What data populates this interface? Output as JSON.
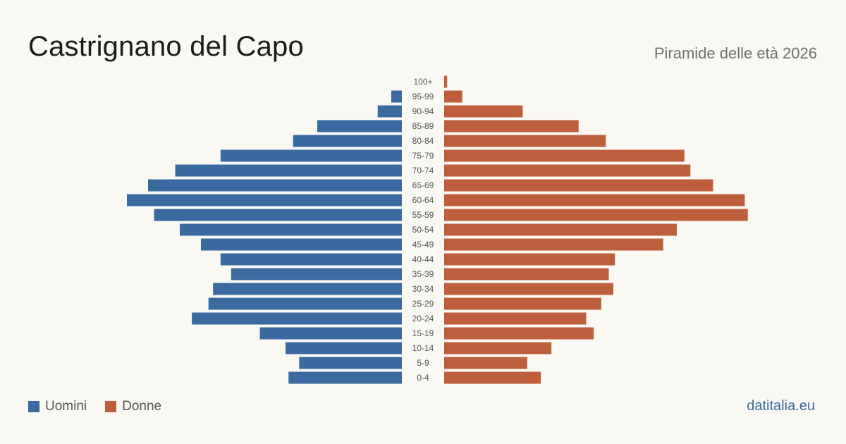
{
  "header": {
    "title": "Castrignano del Capo",
    "subtitle": "Piramide delle età 2026"
  },
  "legend": {
    "men_label": "Uomini",
    "women_label": "Donne"
  },
  "brand": "datitalia.eu",
  "colors": {
    "men": "#3b6aa0",
    "women": "#bd5e3c",
    "background": "#faf8f3"
  },
  "chart_data": {
    "type": "bar",
    "orientation": "horizontal-pyramid",
    "categories": [
      "100+",
      "95-99",
      "90-94",
      "85-89",
      "80-84",
      "75-79",
      "70-74",
      "65-69",
      "60-64",
      "55-59",
      "50-54",
      "45-49",
      "40-44",
      "35-39",
      "30-34",
      "25-29",
      "20-24",
      "15-19",
      "10-14",
      "5-9",
      "0-4"
    ],
    "series": [
      {
        "name": "Uomini",
        "values": [
          0,
          7,
          16,
          56,
          72,
          120,
          150,
          168,
          182,
          164,
          147,
          133,
          120,
          113,
          125,
          128,
          139,
          94,
          77,
          68,
          75
        ]
      },
      {
        "name": "Donne",
        "values": [
          2,
          12,
          52,
          89,
          107,
          159,
          163,
          178,
          199,
          201,
          154,
          145,
          113,
          109,
          112,
          104,
          94,
          99,
          71,
          55,
          64
        ]
      }
    ],
    "xlim": [
      0,
      210
    ],
    "grid": false
  }
}
